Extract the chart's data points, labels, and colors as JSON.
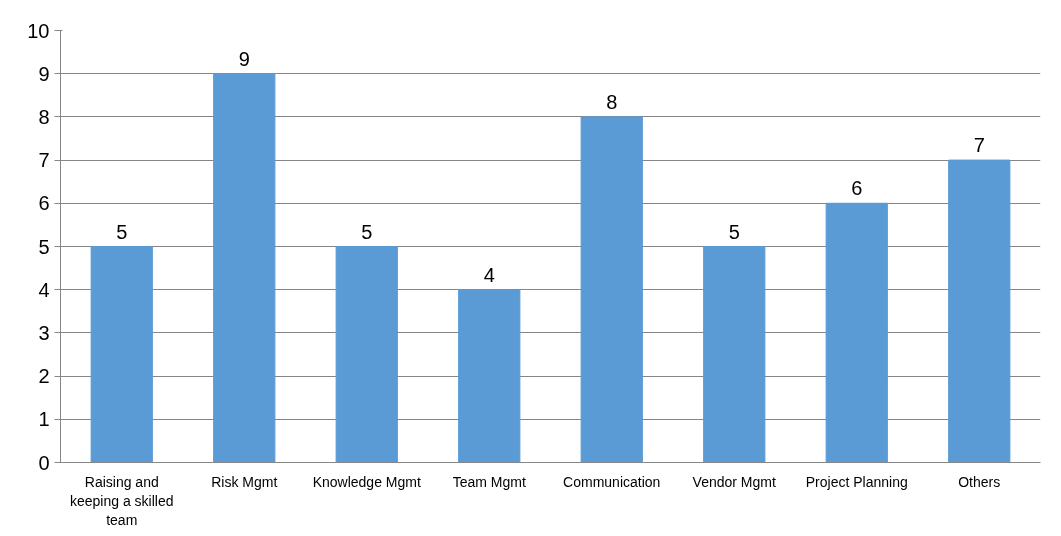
{
  "chart_data": {
    "type": "bar",
    "categories": [
      "Raising and keeping a skilled team",
      "Risk Mgmt",
      "Knowledge Mgmt",
      "Team Mgmt",
      "Communication",
      "Vendor Mgmt",
      "Project Planning",
      "Others"
    ],
    "values": [
      5,
      9,
      5,
      4,
      8,
      5,
      6,
      7
    ],
    "color": "#5b9bd5",
    "ylim": [
      0,
      10
    ],
    "yticks": [
      0,
      1,
      2,
      3,
      4,
      5,
      6,
      7,
      8,
      9,
      10
    ],
    "grid": "y",
    "data_labels": true
  }
}
